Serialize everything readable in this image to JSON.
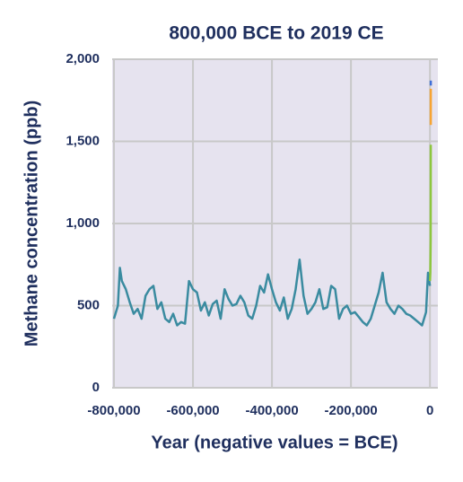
{
  "chart_data": {
    "type": "line",
    "title": "800,000 BCE to 2019 CE",
    "x_label": "Year (negative values = BCE)",
    "y_label": "Methane concentration (ppb)",
    "xlim": [
      -800000,
      20000
    ],
    "xticks": [
      {
        "value": -800000,
        "label": "-800,000"
      },
      {
        "value": -600000,
        "label": "-600,000"
      },
      {
        "value": -400000,
        "label": "-400,000"
      },
      {
        "value": -200000,
        "label": "-200,000"
      },
      0
    ],
    "ylim": [
      0,
      2000
    ],
    "yticks": [
      0,
      500,
      {
        "value": 1000,
        "label": "1,000"
      },
      {
        "value": 1500,
        "label": "1,500"
      },
      {
        "value": 2000,
        "label": "2,000"
      }
    ],
    "grid": true,
    "series": [
      {
        "color": "#3a8ba0",
        "x": [
          -800000,
          -790000,
          -785000,
          -780000,
          -770000,
          -760000,
          -750000,
          -740000,
          -730000,
          -720000,
          -710000,
          -700000,
          -690000,
          -680000,
          -670000,
          -660000,
          -650000,
          -640000,
          -630000,
          -620000,
          -610000,
          -600000,
          -590000,
          -580000,
          -570000,
          -560000,
          -550000,
          -540000,
          -530000,
          -520000,
          -510000,
          -500000,
          -490000,
          -480000,
          -470000,
          -460000,
          -450000,
          -440000,
          -430000,
          -420000,
          -410000,
          -400000,
          -390000,
          -380000,
          -370000,
          -360000,
          -350000,
          -340000,
          -330000,
          -320000,
          -310000,
          -300000,
          -290000,
          -280000,
          -270000,
          -260000,
          -250000,
          -240000,
          -230000,
          -220000,
          -210000,
          -200000,
          -190000,
          -180000,
          -170000,
          -160000,
          -150000,
          -140000,
          -130000,
          -120000,
          -110000,
          -100000,
          -90000,
          -80000,
          -70000,
          -60000,
          -50000,
          -40000,
          -30000,
          -20000,
          -10000,
          -5000,
          0
        ],
        "values": [
          420,
          500,
          730,
          650,
          600,
          520,
          450,
          480,
          420,
          560,
          600,
          620,
          480,
          520,
          420,
          400,
          450,
          380,
          400,
          390,
          650,
          600,
          580,
          470,
          520,
          440,
          510,
          530,
          420,
          600,
          540,
          500,
          510,
          560,
          520,
          440,
          420,
          500,
          620,
          580,
          690,
          600,
          520,
          470,
          550,
          420,
          480,
          600,
          780,
          560,
          450,
          480,
          520,
          600,
          480,
          490,
          620,
          600,
          420,
          480,
          500,
          450,
          460,
          430,
          400,
          380,
          420,
          500,
          580,
          700,
          520,
          480,
          450,
          500,
          480,
          450,
          440,
          420,
          400,
          380,
          460,
          700,
          620
        ]
      },
      {
        "color": "#8dc63f",
        "x": [
          0,
          1000,
          1900,
          1980
        ],
        "values": [
          650,
          700,
          900,
          1480
        ]
      },
      {
        "color": "#f7a433",
        "x": [
          1984,
          2000,
          2019
        ],
        "values": [
          1600,
          1750,
          1820
        ]
      },
      {
        "color": "#3f6fd8",
        "x": [
          1985,
          2019
        ],
        "values": [
          1840,
          1870
        ]
      }
    ]
  }
}
